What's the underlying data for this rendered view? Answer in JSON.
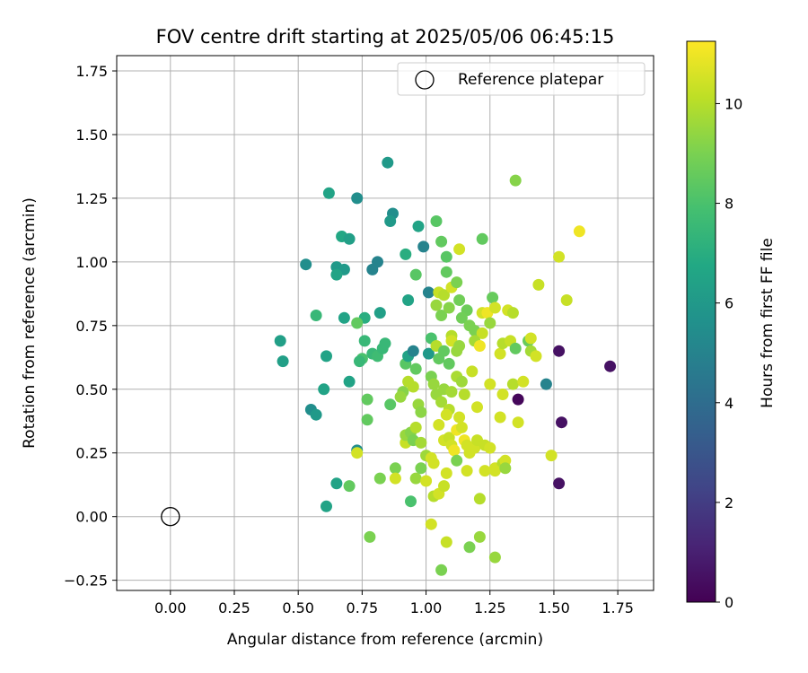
{
  "chart_data": {
    "type": "scatter",
    "title": "FOV centre drift starting at 2025/05/06 06:45:15",
    "xlabel": "Angular distance from reference (arcmin)",
    "ylabel": "Rotation from reference (arcmin)",
    "xlim": [
      -0.21,
      1.89
    ],
    "ylim": [
      -0.29,
      1.81
    ],
    "xticks": [
      "0.00",
      "0.25",
      "0.50",
      "0.75",
      "1.00",
      "1.25",
      "1.50",
      "1.75"
    ],
    "yticks": [
      "−0.25",
      "0.00",
      "0.25",
      "0.50",
      "0.75",
      "1.00",
      "1.25",
      "1.50",
      "1.75"
    ],
    "grid": true,
    "legend": {
      "position": "top-right",
      "label": "Reference platepar"
    },
    "reference_point": {
      "x": 0.0,
      "y": 0.0
    },
    "colorbar": {
      "label": "Hours from first FF file",
      "colormap": "viridis",
      "min": 0,
      "max": 11.25,
      "ticks": [
        "0",
        "2",
        "4",
        "6",
        "8",
        "10"
      ]
    },
    "series": [
      {
        "color_by": "hours",
        "points": [
          [
            0.85,
            1.39,
            6.0
          ],
          [
            0.62,
            1.27,
            6.5
          ],
          [
            0.73,
            1.25,
            5.5
          ],
          [
            1.35,
            1.32,
            9.2
          ],
          [
            0.87,
            1.19,
            5.5
          ],
          [
            0.86,
            1.16,
            6.0
          ],
          [
            0.97,
            1.14,
            6.5
          ],
          [
            1.04,
            1.16,
            8.3
          ],
          [
            0.67,
            1.1,
            6.7
          ],
          [
            0.7,
            1.09,
            6.3
          ],
          [
            0.53,
            0.99,
            5.5
          ],
          [
            0.65,
            0.98,
            6.0
          ],
          [
            0.68,
            0.97,
            6.0
          ],
          [
            0.65,
            0.95,
            6.5
          ],
          [
            0.79,
            0.97,
            5.0
          ],
          [
            0.81,
            1.0,
            5.0
          ],
          [
            0.92,
            1.03,
            7.0
          ],
          [
            0.99,
            1.06,
            5.0
          ],
          [
            1.06,
            1.08,
            8.5
          ],
          [
            1.08,
            1.02,
            8.3
          ],
          [
            1.13,
            1.05,
            10.5
          ],
          [
            1.22,
            1.09,
            8.5
          ],
          [
            1.6,
            1.12,
            11.0
          ],
          [
            1.52,
            1.02,
            10.5
          ],
          [
            0.96,
            0.95,
            8.3
          ],
          [
            1.08,
            0.96,
            8.5
          ],
          [
            1.01,
            0.88,
            5.0
          ],
          [
            0.93,
            0.85,
            6.5
          ],
          [
            1.05,
            0.88,
            10.3
          ],
          [
            1.07,
            0.87,
            10.0
          ],
          [
            1.1,
            0.9,
            10.5
          ],
          [
            1.12,
            0.92,
            9.0
          ],
          [
            1.26,
            0.86,
            8.6
          ],
          [
            1.44,
            0.91,
            10.3
          ],
          [
            1.55,
            0.85,
            10.3
          ],
          [
            0.82,
            0.8,
            6.3
          ],
          [
            0.68,
            0.78,
            6.5
          ],
          [
            0.57,
            0.79,
            7.5
          ],
          [
            0.76,
            0.78,
            7.0
          ],
          [
            0.73,
            0.76,
            8.5
          ],
          [
            1.04,
            0.83,
            9.5
          ],
          [
            1.06,
            0.79,
            9.0
          ],
          [
            1.09,
            0.82,
            9.2
          ],
          [
            1.13,
            0.85,
            8.8
          ],
          [
            1.16,
            0.81,
            8.7
          ],
          [
            1.22,
            0.8,
            10.5
          ],
          [
            1.24,
            0.8,
            11.0
          ],
          [
            1.27,
            0.82,
            10.5
          ],
          [
            1.32,
            0.81,
            10.5
          ],
          [
            1.34,
            0.8,
            10.0
          ],
          [
            1.14,
            0.78,
            8.8
          ],
          [
            1.17,
            0.75,
            9.0
          ],
          [
            1.19,
            0.73,
            9.0
          ],
          [
            1.22,
            0.72,
            10.3
          ],
          [
            1.25,
            0.76,
            9.5
          ],
          [
            0.43,
            0.69,
            6.3
          ],
          [
            0.44,
            0.61,
            6.3
          ],
          [
            0.61,
            0.63,
            6.5
          ],
          [
            0.76,
            0.69,
            7.5
          ],
          [
            0.79,
            0.64,
            7.5
          ],
          [
            0.81,
            0.63,
            7.7
          ],
          [
            0.83,
            0.66,
            7.5
          ],
          [
            0.84,
            0.68,
            7.5
          ],
          [
            0.75,
            0.62,
            8.0
          ],
          [
            0.74,
            0.61,
            7.5
          ],
          [
            0.92,
            0.6,
            8.3
          ],
          [
            0.93,
            0.63,
            6.5
          ],
          [
            0.96,
            0.58,
            8.5
          ],
          [
            0.95,
            0.65,
            5.0
          ],
          [
            1.01,
            0.64,
            6.0
          ],
          [
            1.02,
            0.7,
            8.0
          ],
          [
            1.04,
            0.67,
            10.0
          ],
          [
            1.05,
            0.62,
            8.5
          ],
          [
            1.07,
            0.65,
            8.5
          ],
          [
            1.09,
            0.6,
            8.5
          ],
          [
            1.1,
            0.71,
            10.0
          ],
          [
            1.1,
            0.69,
            10.5
          ],
          [
            1.12,
            0.65,
            9.5
          ],
          [
            1.13,
            0.67,
            9.5
          ],
          [
            1.19,
            0.69,
            9.7
          ],
          [
            1.21,
            0.67,
            11.0
          ],
          [
            1.29,
            0.64,
            10.5
          ],
          [
            1.3,
            0.68,
            10.0
          ],
          [
            1.33,
            0.69,
            10.3
          ],
          [
            1.35,
            0.66,
            8.5
          ],
          [
            1.4,
            0.69,
            8.6
          ],
          [
            1.41,
            0.7,
            10.5
          ],
          [
            1.41,
            0.65,
            9.7
          ],
          [
            1.43,
            0.63,
            10.5
          ],
          [
            1.52,
            0.65,
            0.5
          ],
          [
            1.72,
            0.59,
            0.5
          ],
          [
            1.36,
            0.46,
            0.2
          ],
          [
            1.47,
            0.52,
            5.0
          ],
          [
            1.53,
            0.37,
            0.5
          ],
          [
            1.52,
            0.13,
            0.5
          ],
          [
            0.7,
            0.53,
            6.5
          ],
          [
            0.6,
            0.5,
            6.5
          ],
          [
            0.55,
            0.42,
            5.5
          ],
          [
            0.57,
            0.4,
            6.0
          ],
          [
            0.77,
            0.46,
            8.5
          ],
          [
            0.77,
            0.38,
            8.5
          ],
          [
            0.86,
            0.44,
            8.3
          ],
          [
            0.91,
            0.49,
            9.2
          ],
          [
            0.9,
            0.47,
            9.5
          ],
          [
            0.93,
            0.53,
            10.0
          ],
          [
            0.95,
            0.51,
            10.0
          ],
          [
            0.97,
            0.44,
            9.5
          ],
          [
            0.98,
            0.41,
            9.3
          ],
          [
            1.02,
            0.55,
            9.0
          ],
          [
            1.03,
            0.52,
            9.5
          ],
          [
            1.04,
            0.48,
            9.5
          ],
          [
            1.06,
            0.45,
            9.7
          ],
          [
            1.07,
            0.5,
            9.5
          ],
          [
            1.09,
            0.42,
            10.0
          ],
          [
            1.1,
            0.49,
            9.7
          ],
          [
            1.12,
            0.55,
            9.8
          ],
          [
            1.14,
            0.53,
            9.6
          ],
          [
            1.15,
            0.48,
            10.0
          ],
          [
            1.18,
            0.57,
            10.3
          ],
          [
            1.2,
            0.43,
            10.5
          ],
          [
            1.25,
            0.52,
            10.5
          ],
          [
            1.3,
            0.48,
            10.5
          ],
          [
            1.34,
            0.52,
            10.0
          ],
          [
            1.36,
            0.37,
            10.5
          ],
          [
            1.38,
            0.53,
            10.5
          ],
          [
            1.29,
            0.39,
            10.5
          ],
          [
            0.73,
            0.26,
            5.5
          ],
          [
            0.73,
            0.25,
            10.5
          ],
          [
            0.65,
            0.13,
            6.5
          ],
          [
            0.7,
            0.12,
            8.5
          ],
          [
            0.61,
            0.04,
            6.5
          ],
          [
            0.78,
            -0.08,
            9.0
          ],
          [
            0.82,
            0.15,
            9.0
          ],
          [
            0.88,
            0.19,
            9.0
          ],
          [
            0.92,
            0.29,
            10.3
          ],
          [
            0.92,
            0.32,
            9.5
          ],
          [
            0.94,
            0.33,
            9.2
          ],
          [
            0.95,
            0.3,
            9.0
          ],
          [
            0.96,
            0.35,
            10.0
          ],
          [
            0.98,
            0.29,
            9.7
          ],
          [
            1.0,
            0.24,
            9.6
          ],
          [
            1.02,
            0.23,
            10.5
          ],
          [
            1.03,
            0.21,
            10.5
          ],
          [
            1.05,
            0.36,
            10.5
          ],
          [
            1.07,
            0.3,
            10.5
          ],
          [
            1.08,
            0.4,
            10.5
          ],
          [
            1.09,
            0.31,
            10.3
          ],
          [
            1.1,
            0.28,
            10.5
          ],
          [
            1.11,
            0.26,
            11.0
          ],
          [
            1.12,
            0.34,
            11.0
          ],
          [
            1.13,
            0.39,
            10.5
          ],
          [
            1.14,
            0.35,
            10.5
          ],
          [
            1.15,
            0.3,
            11.0
          ],
          [
            1.16,
            0.28,
            10.5
          ],
          [
            1.17,
            0.25,
            10.5
          ],
          [
            1.19,
            0.27,
            10.5
          ],
          [
            1.2,
            0.3,
            10.3
          ],
          [
            1.23,
            0.28,
            10.3
          ],
          [
            1.25,
            0.27,
            10.5
          ],
          [
            1.27,
            0.19,
            10.5
          ],
          [
            1.3,
            0.21,
            10.0
          ],
          [
            1.31,
            0.22,
            10.5
          ],
          [
            0.88,
            0.15,
            10.5
          ],
          [
            0.94,
            0.06,
            8.0
          ],
          [
            0.96,
            0.15,
            9.5
          ],
          [
            0.98,
            0.19,
            9.0
          ],
          [
            1.0,
            0.14,
            10.5
          ],
          [
            1.03,
            0.08,
            10.0
          ],
          [
            1.05,
            0.09,
            10.5
          ],
          [
            1.07,
            0.12,
            10.3
          ],
          [
            1.08,
            0.17,
            10.5
          ],
          [
            1.12,
            0.22,
            9.0
          ],
          [
            1.16,
            0.18,
            10.5
          ],
          [
            1.21,
            0.07,
            10.0
          ],
          [
            1.23,
            0.18,
            10.5
          ],
          [
            1.27,
            0.18,
            10.5
          ],
          [
            1.31,
            0.19,
            9.5
          ],
          [
            1.49,
            0.24,
            10.5
          ],
          [
            1.02,
            -0.03,
            10.5
          ],
          [
            1.08,
            -0.1,
            10.3
          ],
          [
            1.06,
            -0.21,
            9.0
          ],
          [
            1.17,
            -0.12,
            9.0
          ],
          [
            1.21,
            -0.08,
            9.5
          ],
          [
            1.27,
            -0.16,
            9.5
          ]
        ]
      }
    ]
  }
}
